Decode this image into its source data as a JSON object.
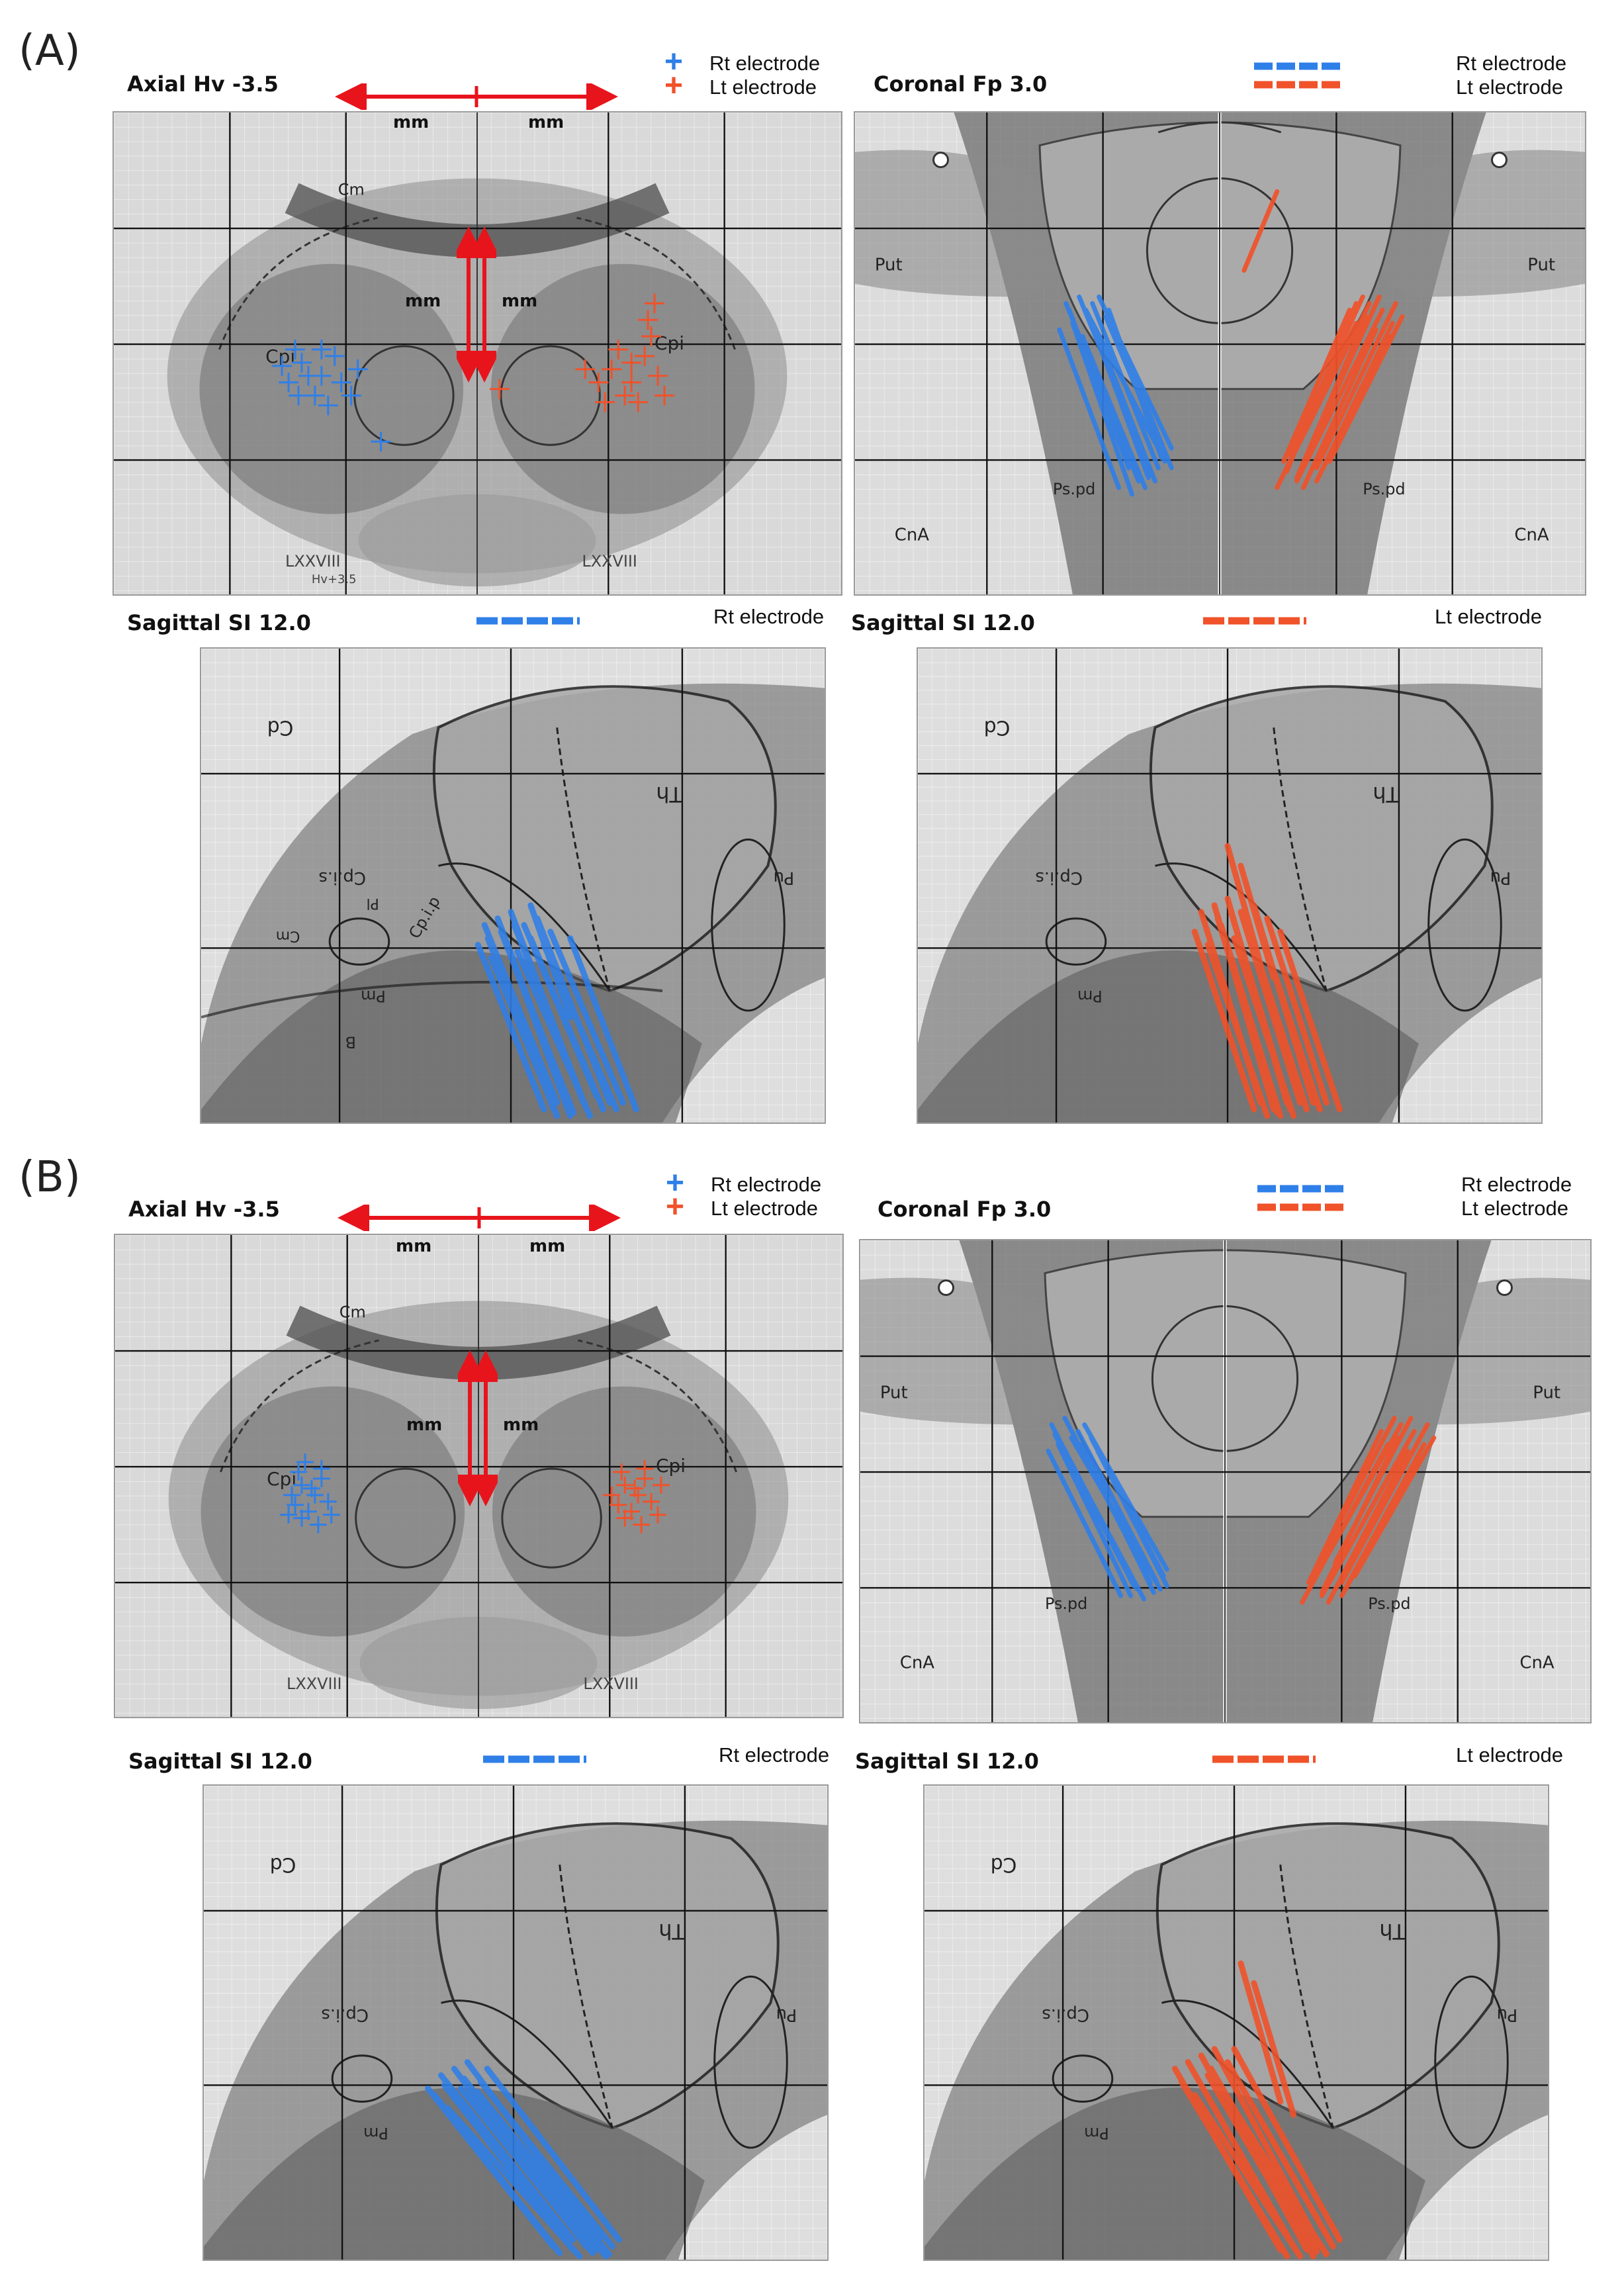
{
  "panels": [
    {
      "label": "(A)",
      "axial": {
        "title": "Axial Hv -3.5",
        "mm_top_left": "mm",
        "mm_top_right": "mm",
        "mm_mid_left": "mm",
        "mm_mid_right": "mm",
        "legend_rt": "Rt electrode",
        "legend_lt": "Lt electrode"
      },
      "coronal": {
        "title": "Coronal Fp 3.0",
        "legend_rt": "Rt electrode",
        "legend_lt": "Lt electrode"
      },
      "sagittal_rt": {
        "title": "Sagittal SI 12.0",
        "legend": "Rt electrode"
      },
      "sagittal_lt": {
        "title": "Sagittal SI 12.0",
        "legend": "Lt electrode"
      }
    },
    {
      "label": "(B)",
      "axial": {
        "title": "Axial Hv -3.5",
        "mm_top_left": "mm",
        "mm_top_right": "mm",
        "mm_mid_left": "mm",
        "mm_mid_right": "mm",
        "legend_rt": "Rt electrode",
        "legend_lt": "Lt electrode"
      },
      "coronal": {
        "title": "Coronal Fp 3.0",
        "legend_rt": "Rt electrode",
        "legend_lt": "Lt electrode"
      },
      "sagittal_rt": {
        "title": "Sagittal SI 12.0",
        "legend": "Rt electrode"
      },
      "sagittal_lt": {
        "title": "Sagittal SI 12.0",
        "legend": "Lt electrode"
      }
    }
  ],
  "atlas_labels": {
    "axial": {
      "cpi": "Cpi",
      "cm": "Cm",
      "lxxviii": "LXXVIII",
      "hv": "Hv+3.5"
    },
    "coronal": {
      "put": "Put",
      "cna": "CnA",
      "pspd": "Ps.pd"
    },
    "sagittal": {
      "cd": "Cd",
      "th": "Th",
      "cpis": "Cp.i.s",
      "cpip": "Cp.i.p",
      "pu": "Pu",
      "pm": "Pm",
      "b": "B",
      "cm": "Cm",
      "pl": "Pl"
    }
  },
  "colors": {
    "rt": "#2f7fe8",
    "lt": "#f0522a",
    "arrow": "#e8141c"
  }
}
